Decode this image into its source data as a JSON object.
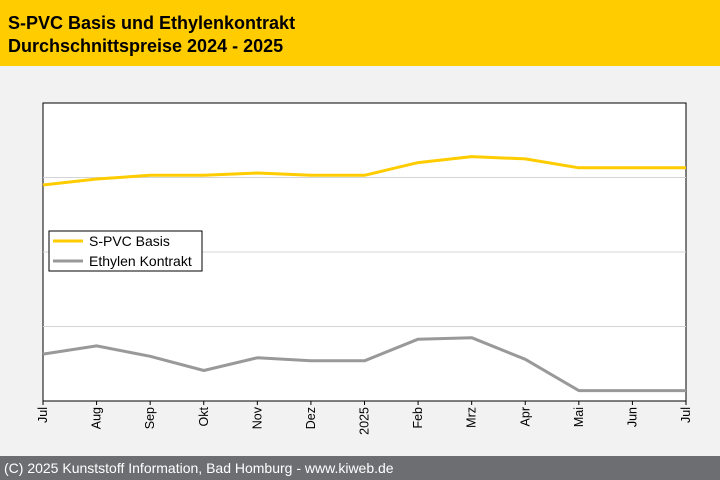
{
  "header": {
    "title_line1": "S-PVC Basis und Ethylenkontrakt",
    "title_line2": "Durchschnittspreise 2024 - 2025",
    "background": "#ffcc00"
  },
  "footer": {
    "text": "(C) 2025 Kunststoff Information, Bad Homburg - www.kiweb.de",
    "background": "#6d6e71"
  },
  "chart_data": {
    "type": "line",
    "title": "S-PVC Basis und Ethylenkontrakt Durchschnittspreise 2024 - 2025",
    "xlabel": "",
    "ylabel": "",
    "categories": [
      "Jul",
      "Aug",
      "Sep",
      "Okt",
      "Nov",
      "Dez",
      "2025",
      "Feb",
      "Mrz",
      "Apr",
      "Mai",
      "Jun",
      "Jul"
    ],
    "ylim": [
      0,
      4
    ],
    "gridlines": [
      1,
      2,
      3
    ],
    "legend_position": "middle-left",
    "series": [
      {
        "name": "S-PVC Basis",
        "color": "#ffcc00",
        "values": [
          2.9,
          2.98,
          3.03,
          3.03,
          3.06,
          3.03,
          3.03,
          3.2,
          3.28,
          3.25,
          3.13,
          3.13,
          3.13
        ]
      },
      {
        "name": "Ethylen Kontrakt",
        "color": "#999999",
        "values": [
          0.63,
          0.74,
          0.6,
          0.41,
          0.58,
          0.54,
          0.54,
          0.83,
          0.85,
          0.56,
          0.14,
          0.14,
          0.14
        ]
      }
    ]
  }
}
